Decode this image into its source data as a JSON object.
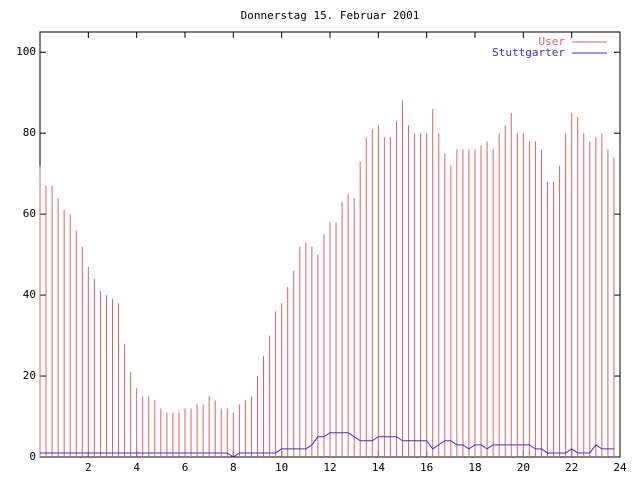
{
  "chart_data": {
    "type": "line",
    "title": "Donnerstag 15. Februar 2001",
    "x": [
      0,
      0.25,
      0.5,
      0.75,
      1,
      1.25,
      1.5,
      1.75,
      2,
      2.25,
      2.5,
      2.75,
      3,
      3.25,
      3.5,
      3.75,
      4,
      4.25,
      4.5,
      4.75,
      5,
      5.25,
      5.5,
      5.75,
      6,
      6.25,
      6.5,
      6.75,
      7,
      7.25,
      7.5,
      7.75,
      8,
      8.25,
      8.5,
      8.75,
      9,
      9.25,
      9.5,
      9.75,
      10,
      10.25,
      10.5,
      10.75,
      11,
      11.25,
      11.5,
      11.75,
      12,
      12.25,
      12.5,
      12.75,
      13,
      13.25,
      13.5,
      13.75,
      14,
      14.25,
      14.5,
      14.75,
      15,
      15.25,
      15.5,
      15.75,
      16,
      16.25,
      16.5,
      16.75,
      17,
      17.25,
      17.5,
      17.75,
      18,
      18.25,
      18.5,
      18.75,
      19,
      19.25,
      19.5,
      19.75,
      20,
      20.25,
      20.5,
      20.75,
      21,
      21.25,
      21.5,
      21.75,
      22,
      22.25,
      22.5,
      22.75,
      23,
      23.25,
      23.5,
      23.75
    ],
    "series": [
      {
        "name": "User",
        "color": "#e06060",
        "style": "impulses",
        "values": [
          72,
          67,
          67,
          64,
          61,
          60,
          56,
          52,
          47,
          44,
          41,
          40,
          39,
          38,
          28,
          21,
          17,
          15,
          15,
          14,
          12,
          11,
          11,
          11,
          12,
          12,
          13,
          13,
          15,
          14,
          12,
          12,
          11,
          13,
          14,
          15,
          20,
          25,
          30,
          36,
          38,
          42,
          46,
          52,
          53,
          52,
          50,
          55,
          58,
          58,
          63,
          65,
          64,
          73,
          79,
          81,
          82,
          79,
          79,
          83,
          88,
          82,
          80,
          80,
          80,
          86,
          80,
          75,
          72,
          76,
          76,
          76,
          76,
          77,
          78,
          76,
          80,
          82,
          85,
          80,
          80,
          78,
          78,
          76,
          68,
          68,
          72,
          80,
          85,
          84,
          80,
          78,
          79,
          80,
          76,
          74
        ]
      },
      {
        "name": "Stuttgarter",
        "color": "#3030e0",
        "style": "lines",
        "values": [
          1,
          1,
          1,
          1,
          1,
          1,
          1,
          1,
          1,
          1,
          1,
          1,
          1,
          1,
          1,
          1,
          1,
          1,
          1,
          1,
          1,
          1,
          1,
          1,
          1,
          1,
          1,
          1,
          1,
          1,
          1,
          1,
          0,
          1,
          1,
          1,
          1,
          1,
          1,
          1,
          2,
          2,
          2,
          2,
          2,
          3,
          5,
          5,
          6,
          6,
          6,
          6,
          5,
          4,
          4,
          4,
          5,
          5,
          5,
          5,
          4,
          4,
          4,
          4,
          4,
          2,
          3,
          4,
          4,
          3,
          3,
          2,
          3,
          3,
          2,
          3,
          3,
          3,
          3,
          3,
          3,
          3,
          2,
          2,
          1,
          1,
          1,
          1,
          2,
          1,
          1,
          1,
          3,
          2,
          2,
          2
        ]
      }
    ],
    "xlim": [
      0,
      24
    ],
    "xticks": [
      2,
      4,
      6,
      8,
      10,
      12,
      14,
      16,
      18,
      20,
      22,
      24
    ],
    "ylim": [
      0,
      105
    ],
    "yticks": [
      0,
      20,
      40,
      60,
      80,
      100
    ],
    "legend": "top-right"
  }
}
